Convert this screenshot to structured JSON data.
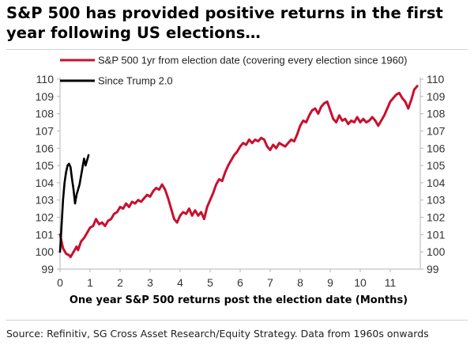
{
  "title": "S&P 500 has provided positive returns in the first year following US elections…",
  "source": "Source: Refinitiv, SG Cross Asset Research/Equity Strategy. Data from 1960s onwards",
  "colors": {
    "series1": "#c8102e",
    "series2": "#000000",
    "axis": "#b5b5b5",
    "text": "#333333"
  },
  "chart_data": {
    "type": "line",
    "title": "S&P 500 has provided positive returns in the first year following US elections…",
    "xlabel": "One year S&P 500 returns post the election date (Months)",
    "ylabel": "",
    "xlim": [
      0,
      12
    ],
    "ylim": [
      99,
      110
    ],
    "x_ticks": [
      0,
      1,
      2,
      3,
      4,
      5,
      6,
      7,
      8,
      9,
      10,
      11
    ],
    "y_ticks": [
      99,
      100,
      101,
      102,
      103,
      104,
      105,
      106,
      107,
      108,
      109,
      110
    ],
    "secondary_y_axis": true,
    "grid": false,
    "legend_position": "top",
    "series": [
      {
        "name": "S&P 500 1yr from election date (covering every election since 1960)",
        "color": "#c8102e",
        "points": [
          [
            0.0,
            101.0
          ],
          [
            0.1,
            100.2
          ],
          [
            0.2,
            99.9
          ],
          [
            0.3,
            99.8
          ],
          [
            0.35,
            99.7
          ],
          [
            0.45,
            100.0
          ],
          [
            0.55,
            100.3
          ],
          [
            0.6,
            100.1
          ],
          [
            0.7,
            100.6
          ],
          [
            0.8,
            100.8
          ],
          [
            0.9,
            101.1
          ],
          [
            1.0,
            101.4
          ],
          [
            1.1,
            101.5
          ],
          [
            1.2,
            101.9
          ],
          [
            1.3,
            101.6
          ],
          [
            1.4,
            101.7
          ],
          [
            1.5,
            101.5
          ],
          [
            1.6,
            101.8
          ],
          [
            1.7,
            101.9
          ],
          [
            1.8,
            102.2
          ],
          [
            1.9,
            102.3
          ],
          [
            2.0,
            102.6
          ],
          [
            2.1,
            102.5
          ],
          [
            2.2,
            102.8
          ],
          [
            2.3,
            102.6
          ],
          [
            2.4,
            102.9
          ],
          [
            2.5,
            102.8
          ],
          [
            2.6,
            103.0
          ],
          [
            2.7,
            102.9
          ],
          [
            2.8,
            103.1
          ],
          [
            2.9,
            103.3
          ],
          [
            3.0,
            103.2
          ],
          [
            3.1,
            103.5
          ],
          [
            3.2,
            103.7
          ],
          [
            3.3,
            103.6
          ],
          [
            3.4,
            103.9
          ],
          [
            3.5,
            103.6
          ],
          [
            3.6,
            103.1
          ],
          [
            3.7,
            102.5
          ],
          [
            3.8,
            101.9
          ],
          [
            3.9,
            101.7
          ],
          [
            4.0,
            102.1
          ],
          [
            4.1,
            102.3
          ],
          [
            4.2,
            102.2
          ],
          [
            4.3,
            102.5
          ],
          [
            4.4,
            102.1
          ],
          [
            4.5,
            102.4
          ],
          [
            4.6,
            102.1
          ],
          [
            4.7,
            102.3
          ],
          [
            4.8,
            101.9
          ],
          [
            4.9,
            102.6
          ],
          [
            5.0,
            103.0
          ],
          [
            5.1,
            103.4
          ],
          [
            5.2,
            103.9
          ],
          [
            5.3,
            104.2
          ],
          [
            5.4,
            104.1
          ],
          [
            5.5,
            104.6
          ],
          [
            5.6,
            105.0
          ],
          [
            5.7,
            105.3
          ],
          [
            5.8,
            105.6
          ],
          [
            5.9,
            105.8
          ],
          [
            6.0,
            106.1
          ],
          [
            6.1,
            106.3
          ],
          [
            6.2,
            106.2
          ],
          [
            6.3,
            106.5
          ],
          [
            6.4,
            106.3
          ],
          [
            6.5,
            106.5
          ],
          [
            6.6,
            106.4
          ],
          [
            6.7,
            106.6
          ],
          [
            6.8,
            106.5
          ],
          [
            6.9,
            106.1
          ],
          [
            7.0,
            105.9
          ],
          [
            7.1,
            106.2
          ],
          [
            7.2,
            106.0
          ],
          [
            7.3,
            106.3
          ],
          [
            7.4,
            106.2
          ],
          [
            7.5,
            106.1
          ],
          [
            7.6,
            106.3
          ],
          [
            7.7,
            106.5
          ],
          [
            7.8,
            106.4
          ],
          [
            7.9,
            106.8
          ],
          [
            8.0,
            107.3
          ],
          [
            8.1,
            107.6
          ],
          [
            8.2,
            107.5
          ],
          [
            8.3,
            107.9
          ],
          [
            8.4,
            108.2
          ],
          [
            8.5,
            108.3
          ],
          [
            8.6,
            108.0
          ],
          [
            8.7,
            108.4
          ],
          [
            8.8,
            108.6
          ],
          [
            8.9,
            108.7
          ],
          [
            9.0,
            108.2
          ],
          [
            9.1,
            107.7
          ],
          [
            9.2,
            107.5
          ],
          [
            9.3,
            107.9
          ],
          [
            9.4,
            107.6
          ],
          [
            9.5,
            107.7
          ],
          [
            9.6,
            107.4
          ],
          [
            9.7,
            107.6
          ],
          [
            9.8,
            107.5
          ],
          [
            9.9,
            107.8
          ],
          [
            10.0,
            107.5
          ],
          [
            10.1,
            107.7
          ],
          [
            10.2,
            107.5
          ],
          [
            10.3,
            107.6
          ],
          [
            10.4,
            107.8
          ],
          [
            10.5,
            107.6
          ],
          [
            10.6,
            107.3
          ],
          [
            10.7,
            107.6
          ],
          [
            10.8,
            107.9
          ],
          [
            10.9,
            108.3
          ],
          [
            11.0,
            108.7
          ],
          [
            11.1,
            108.9
          ],
          [
            11.2,
            109.1
          ],
          [
            11.3,
            109.2
          ],
          [
            11.4,
            108.9
          ],
          [
            11.5,
            108.7
          ],
          [
            11.6,
            108.3
          ],
          [
            11.7,
            108.8
          ],
          [
            11.8,
            109.4
          ],
          [
            11.9,
            109.6
          ]
        ]
      },
      {
        "name": "Since Trump 2.0",
        "color": "#000000",
        "points": [
          [
            0.0,
            100.0
          ],
          [
            0.05,
            101.5
          ],
          [
            0.1,
            103.0
          ],
          [
            0.15,
            104.0
          ],
          [
            0.2,
            104.6
          ],
          [
            0.25,
            105.0
          ],
          [
            0.3,
            105.1
          ],
          [
            0.35,
            104.9
          ],
          [
            0.4,
            104.2
          ],
          [
            0.45,
            103.6
          ],
          [
            0.5,
            102.8
          ],
          [
            0.55,
            103.3
          ],
          [
            0.6,
            103.6
          ],
          [
            0.65,
            103.9
          ],
          [
            0.7,
            104.4
          ],
          [
            0.75,
            104.9
          ],
          [
            0.8,
            105.4
          ],
          [
            0.85,
            105.0
          ],
          [
            0.9,
            105.3
          ],
          [
            0.95,
            105.6
          ]
        ]
      }
    ]
  }
}
